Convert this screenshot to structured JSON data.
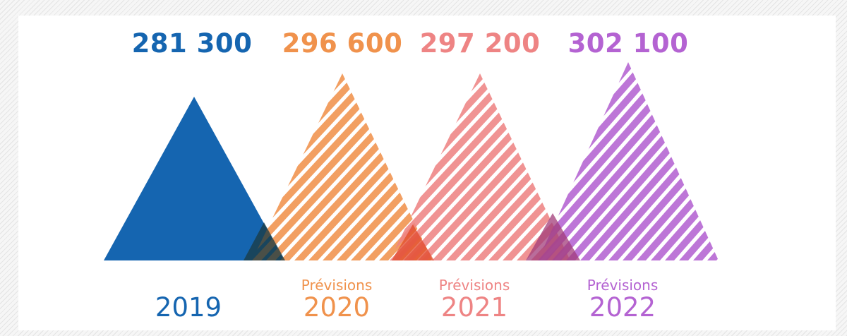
{
  "chart_data": {
    "type": "bar",
    "categories": [
      "2019",
      "2020",
      "2021",
      "2022"
    ],
    "values": [
      281300,
      296600,
      297200,
      302100
    ],
    "value_labels": [
      "281 300",
      "296 600",
      "297 200",
      "302 100"
    ],
    "sublabels": [
      "",
      "Prévisions",
      "Prévisions",
      "Prévisions"
    ],
    "series_colors": [
      "#1565b0",
      "#f0924c",
      "#ee8484",
      "#b463d2"
    ],
    "styles": [
      "solid",
      "striped",
      "striped",
      "striped"
    ],
    "title": "",
    "xlabel": "",
    "ylabel": "",
    "grid": false,
    "legend": "none"
  }
}
